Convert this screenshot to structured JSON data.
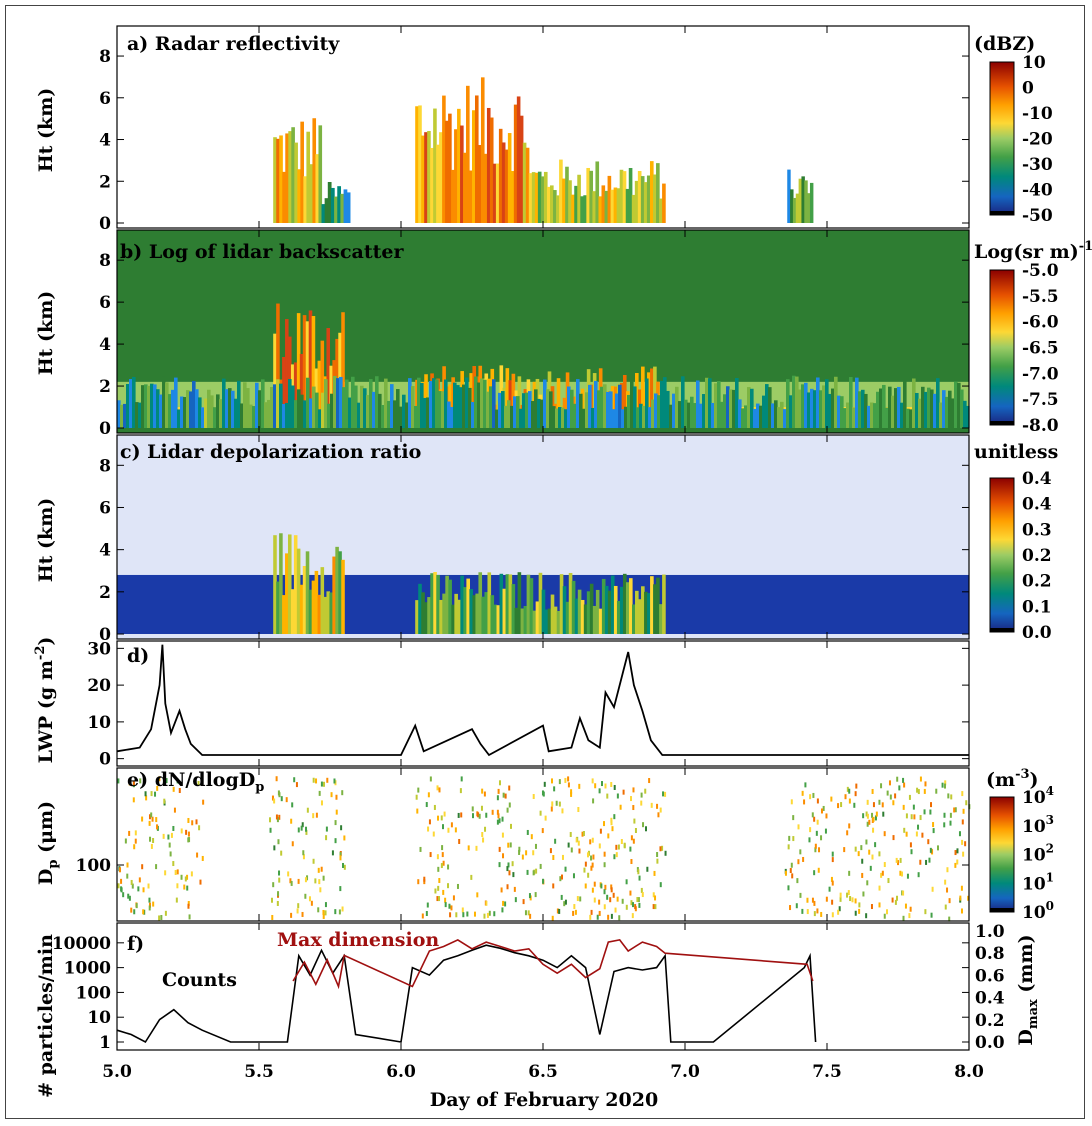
{
  "figure": {
    "xlabel": "Day of February 2020",
    "xticks": [
      "5.0",
      "5.5",
      "6.0",
      "6.5",
      "7.0",
      "7.5",
      "8.0"
    ],
    "xlim": [
      5.0,
      8.0
    ]
  },
  "panels": {
    "a": {
      "title": "a) Radar reflectivity",
      "ylabel": "Ht (km)",
      "yticks": [
        "0",
        "2",
        "4",
        "6",
        "8"
      ],
      "cbar_title": "(dBZ)",
      "cbar_ticks": [
        "10",
        "0",
        "-10",
        "-20",
        "-30",
        "-40",
        "-50"
      ]
    },
    "b": {
      "title": "b) Log of lidar backscatter",
      "ylabel": "Ht (km)",
      "yticks": [
        "0",
        "2",
        "4",
        "6",
        "8"
      ],
      "cbar_title": "Log(sr m)",
      "cbar_title_sup": "-1",
      "cbar_ticks": [
        "-5.0",
        "-5.5",
        "-6.0",
        "-6.5",
        "-7.0",
        "-7.5",
        "-8.0"
      ]
    },
    "c": {
      "title": "c) Lidar depolarization ratio",
      "ylabel": "Ht (km)",
      "yticks": [
        "0",
        "2",
        "4",
        "6",
        "8"
      ],
      "cbar_title": "unitless",
      "cbar_ticks": [
        "0.4",
        "0.4",
        "0.3",
        "0.2",
        "0.2",
        "0.1",
        "0.0"
      ]
    },
    "d": {
      "title": "d)",
      "ylabel_main": "LWP (g m",
      "ylabel_sup": "-2",
      "ylabel_end": ")",
      "yticks": [
        "0",
        "10",
        "20",
        "30"
      ]
    },
    "e": {
      "title_main": "e) dN/dlogD",
      "title_sub": "p",
      "ylabel_main": "D",
      "ylabel_sub": "p",
      "ylabel_end": " (μm)",
      "yticks": [
        "100"
      ],
      "cbar_title": "(m",
      "cbar_title_sup": "-3",
      "cbar_title_end": ")",
      "cbar_ticks": [
        {
          "base": "10",
          "exp": "4"
        },
        {
          "base": "10",
          "exp": "3"
        },
        {
          "base": "10",
          "exp": "2"
        },
        {
          "base": "10",
          "exp": "1"
        },
        {
          "base": "10",
          "exp": "0"
        }
      ]
    },
    "f": {
      "title": "f)",
      "ylabel": "# particles/min",
      "yticks": [
        "1",
        "10",
        "100",
        "1000",
        "10000"
      ],
      "y2label_main": "D",
      "y2label_sub": "max",
      "y2label_end": " (mm)",
      "y2ticks": [
        "0.0",
        "0.2",
        "0.4",
        "0.6",
        "0.8",
        "1.0"
      ],
      "annot_counts": "Counts",
      "annot_maxdim": "Max dimension"
    }
  },
  "colors": {
    "counts": "#000000",
    "max_dimension": "#a01010",
    "colormap": [
      "#000000",
      "#1a237e",
      "#0d47a1",
      "#1565c0",
      "#1e88e5",
      "#00897b",
      "#2e7d32",
      "#43a047",
      "#7cb342",
      "#c0ca33",
      "#fdd835",
      "#ffb300",
      "#fb8c00",
      "#ef6c00",
      "#d84315",
      "#b71c1c",
      "#8b0000"
    ]
  },
  "chart_data": [
    {
      "type": "heatmap",
      "title": "a) Radar reflectivity",
      "ylabel": "Ht (km)",
      "xlim": [
        5.0,
        8.0
      ],
      "ylim": [
        0,
        9.2
      ],
      "colorbar": {
        "label": "(dBZ)",
        "range": [
          -52,
          10
        ]
      },
      "features": [
        {
          "x": [
            5.55,
            5.72
          ],
          "ytop": 5.3,
          "ybot": 0.0,
          "value": -15
        },
        {
          "x": [
            5.72,
            5.82
          ],
          "ytop": 2.0,
          "ybot": 0.0,
          "value": -30
        },
        {
          "x": [
            6.05,
            6.45
          ],
          "ytop": 7.0,
          "ybot": 0.0,
          "value": -8
        },
        {
          "x": [
            6.45,
            6.93
          ],
          "ytop": 3.1,
          "ybot": 0.0,
          "value": -18
        },
        {
          "x": [
            7.36,
            7.45
          ],
          "ytop": 2.6,
          "ybot": 0.0,
          "value": -30
        }
      ]
    },
    {
      "type": "heatmap",
      "title": "b) Log of lidar backscatter",
      "ylabel": "Ht (km)",
      "xlim": [
        5.0,
        8.0
      ],
      "ylim": [
        0,
        9.2
      ],
      "colorbar": {
        "label": "Log(sr m)-1",
        "range": [
          -8.0,
          -5.0
        ]
      },
      "features": [
        {
          "x": [
            5.55,
            5.8
          ],
          "ytop": 6.3,
          "ybot": 0.0,
          "value": -5.8
        },
        {
          "x": [
            6.05,
            6.93
          ],
          "ytop": 3.0,
          "ybot": 0.0,
          "value": -6.0
        },
        {
          "x": [
            5.0,
            8.0
          ],
          "ytop": 2.5,
          "ybot": 0.0,
          "value": -7.0
        }
      ]
    },
    {
      "type": "heatmap",
      "title": "c) Lidar depolarization ratio",
      "ylabel": "Ht (km)",
      "xlim": [
        5.0,
        8.0
      ],
      "ylim": [
        0,
        9.2
      ],
      "colorbar": {
        "label": "unitless",
        "range": [
          0.0,
          0.45
        ]
      },
      "features": [
        {
          "x": [
            5.55,
            5.8
          ],
          "ytop": 5.0,
          "ybot": 0.0,
          "value": 0.25
        },
        {
          "x": [
            6.05,
            6.93
          ],
          "ytop": 3.0,
          "ybot": 0.0,
          "value": 0.2
        }
      ]
    },
    {
      "type": "line",
      "title": "d)",
      "ylabel": "LWP (g m-2)",
      "xlim": [
        5.0,
        8.0
      ],
      "ylim": [
        -2,
        32
      ],
      "x": [
        5.0,
        5.08,
        5.12,
        5.15,
        5.16,
        5.17,
        5.19,
        5.22,
        5.24,
        5.26,
        5.3,
        5.5,
        6.0,
        6.05,
        6.08,
        6.25,
        6.28,
        6.31,
        6.5,
        6.52,
        6.6,
        6.63,
        6.66,
        6.7,
        6.72,
        6.75,
        6.78,
        6.8,
        6.82,
        6.85,
        6.88,
        6.92,
        7.0,
        7.5,
        8.0
      ],
      "y": [
        2,
        3,
        8,
        20,
        31,
        15,
        7,
        13,
        8,
        4,
        1,
        1,
        1,
        9,
        2,
        8,
        4,
        1,
        9,
        2,
        3,
        11,
        5,
        3,
        18,
        14,
        23,
        29,
        20,
        13,
        5,
        1,
        1,
        1,
        1
      ]
    },
    {
      "type": "scatter",
      "title": "e) dN/dlogDp",
      "ylabel": "Dp (μm)",
      "xlim": [
        5.0,
        8.0
      ],
      "colorbar": {
        "label": "(m-3)",
        "range": [
          1,
          10000
        ],
        "scale": "log"
      },
      "bands": [
        [
          5.0,
          5.3
        ],
        [
          5.53,
          5.8
        ],
        [
          6.05,
          6.93
        ],
        [
          7.35,
          8.0
        ]
      ]
    },
    {
      "type": "line",
      "title": "f)",
      "ylabel": "# particles/min",
      "y2label": "Dmax (mm)",
      "xlim": [
        5.0,
        8.0
      ],
      "yscale": "log",
      "ylim": [
        1,
        30000
      ],
      "y2lim": [
        0.0,
        1.0
      ],
      "series": [
        {
          "name": "Counts",
          "axis": "left",
          "x": [
            5.0,
            5.05,
            5.1,
            5.15,
            5.2,
            5.25,
            5.3,
            5.4,
            5.6,
            5.64,
            5.68,
            5.72,
            5.76,
            5.8,
            5.84,
            6.0,
            6.04,
            6.1,
            6.15,
            6.2,
            6.25,
            6.3,
            6.35,
            6.4,
            6.45,
            6.5,
            6.55,
            6.6,
            6.65,
            6.7,
            6.75,
            6.8,
            6.85,
            6.9,
            6.93,
            6.95,
            7.1,
            7.42,
            7.44,
            7.46
          ],
          "y": [
            3,
            2,
            1,
            8,
            20,
            6,
            3,
            1,
            1,
            3000,
            500,
            5000,
            600,
            3000,
            2,
            1,
            1000,
            500,
            2000,
            3000,
            5000,
            8000,
            6000,
            4000,
            3000,
            2000,
            1000,
            3000,
            1000,
            2,
            700,
            1000,
            800,
            1000,
            3000,
            1,
            1,
            1000,
            3000,
            1
          ]
        },
        {
          "name": "Max dimension",
          "axis": "right",
          "x": [
            5.62,
            5.66,
            5.7,
            5.74,
            5.78,
            5.8,
            6.04,
            6.1,
            6.15,
            6.2,
            6.25,
            6.3,
            6.35,
            6.4,
            6.45,
            6.5,
            6.55,
            6.6,
            6.65,
            6.7,
            6.73,
            6.77,
            6.8,
            6.85,
            6.9,
            6.93,
            7.43,
            7.45
          ],
          "y": [
            0.55,
            0.72,
            0.52,
            0.74,
            0.5,
            0.78,
            0.5,
            0.82,
            0.86,
            0.92,
            0.84,
            0.9,
            0.86,
            0.82,
            0.84,
            0.7,
            0.62,
            0.7,
            0.58,
            0.66,
            0.9,
            0.92,
            0.82,
            0.9,
            0.86,
            0.8,
            0.7,
            0.55
          ]
        }
      ]
    }
  ]
}
